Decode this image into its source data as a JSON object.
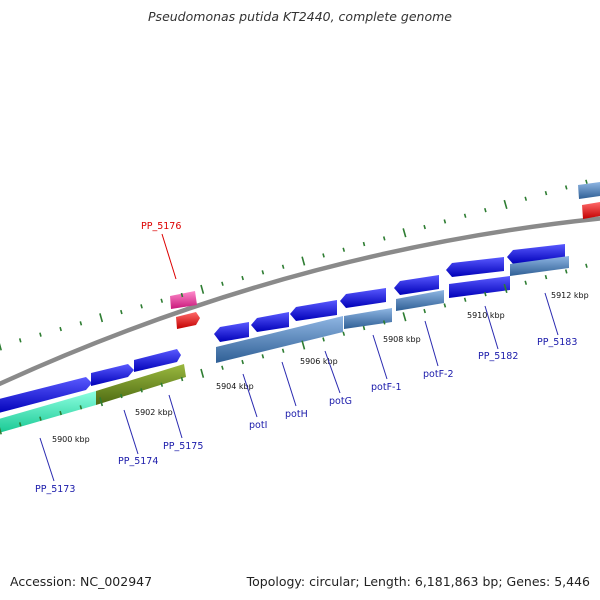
{
  "title": "Pseudomonas putida KT2440, complete genome",
  "footer": {
    "accession": "Accession: NC_002947",
    "summary": "Topology: circular; Length: 6,181,863 bp; Genes: 5,446"
  },
  "colors": {
    "backbone": "#888888",
    "tick": "#2e7d32",
    "gene_dark_blue": "#1414dd",
    "gene_steel_blue": "#4f86c6",
    "gene_aqua": "#2ee8b6",
    "gene_olive": "#6b8e23",
    "gene_magenta": "#e83a9a",
    "gene_red": "#ee1111",
    "label_blue": "#1a1aaa",
    "label_red": "#dd0000",
    "scale_text": "#000000"
  },
  "scale_labels": [
    "5900 kbp",
    "5902 kbp",
    "5904 kbp",
    "5906 kbp",
    "5908 kbp",
    "5910 kbp",
    "5912 kbp"
  ],
  "gene_labels": [
    "PP_5173",
    "PP_5174",
    "PP_5175",
    "potI",
    "potH",
    "potG",
    "potF-1",
    "potF-2",
    "PP_5182",
    "PP_5183",
    "PP_5176"
  ]
}
